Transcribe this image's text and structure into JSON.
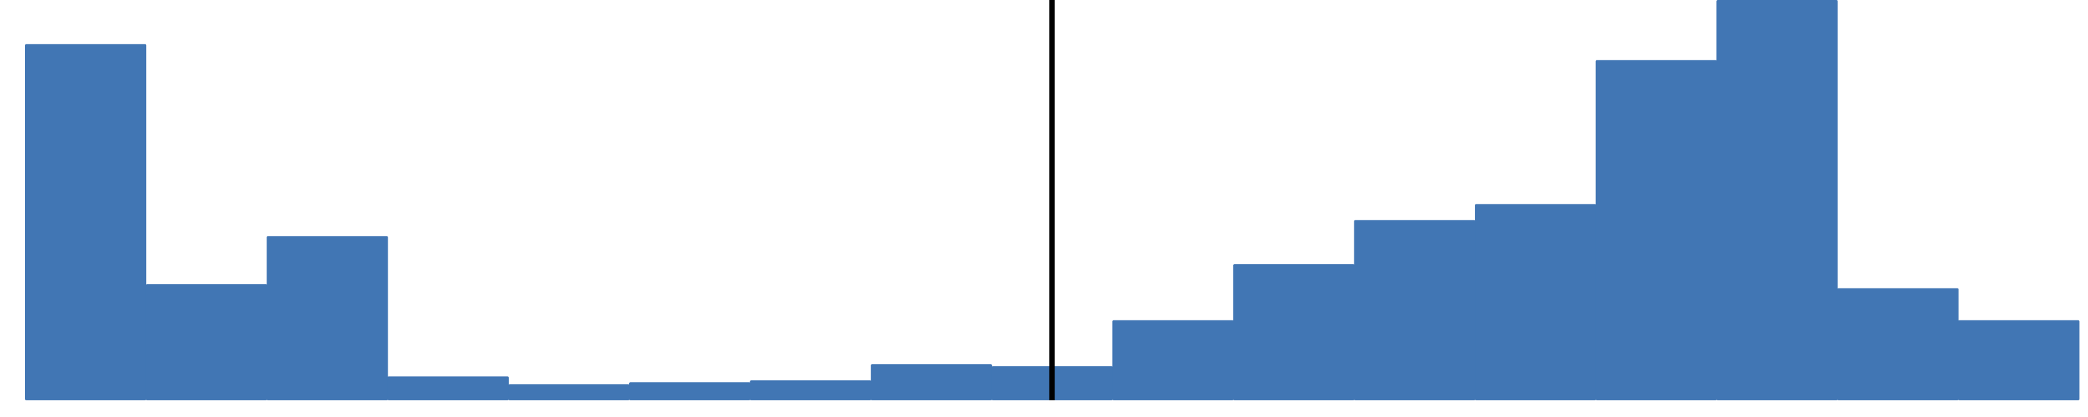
{
  "chart_data": {
    "type": "bar",
    "title": "",
    "xlabel": "",
    "ylabel": "",
    "bar_color": "#4176b4",
    "marker_color": "#000000",
    "grid": false,
    "legend": "none",
    "ylim": [
      0,
      100
    ],
    "values": [
      89,
      29,
      41,
      6,
      4,
      4.5,
      5,
      9,
      8.5,
      20,
      34,
      45,
      49,
      85,
      100,
      28,
      20
    ],
    "marker_after_bar_index": 8,
    "marker_position_within_bar": 0.5
  }
}
